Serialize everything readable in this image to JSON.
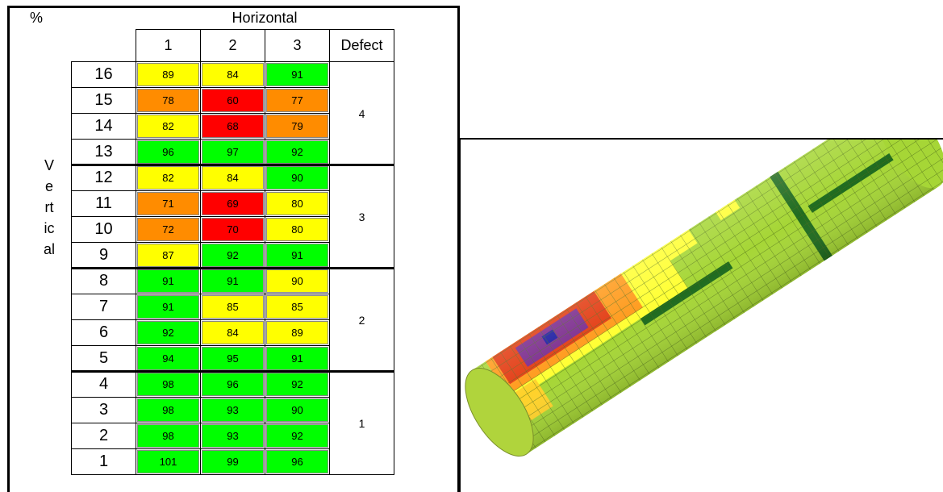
{
  "table": {
    "corner": "%",
    "header": "Horizontal",
    "vertical_label": "Vertical",
    "columns": [
      "1",
      "2",
      "3",
      "Defect"
    ],
    "colors": {
      "g": "#00ff00",
      "y": "#ffff00",
      "o": "#ff8c00",
      "r": "#ff0000"
    },
    "rows": [
      {
        "label": "16",
        "cells": [
          {
            "value": 89,
            "color": "y"
          },
          {
            "value": 84,
            "color": "y"
          },
          {
            "value": 91,
            "color": "g"
          }
        ]
      },
      {
        "label": "15",
        "cells": [
          {
            "value": 78,
            "color": "o"
          },
          {
            "value": 60,
            "color": "r"
          },
          {
            "value": 77,
            "color": "o"
          }
        ]
      },
      {
        "label": "14",
        "cells": [
          {
            "value": 82,
            "color": "y"
          },
          {
            "value": 68,
            "color": "r"
          },
          {
            "value": 79,
            "color": "o"
          }
        ]
      },
      {
        "label": "13",
        "cells": [
          {
            "value": 96,
            "color": "g"
          },
          {
            "value": 97,
            "color": "g"
          },
          {
            "value": 92,
            "color": "g"
          }
        ]
      },
      {
        "label": "12",
        "cells": [
          {
            "value": 82,
            "color": "y"
          },
          {
            "value": 84,
            "color": "y"
          },
          {
            "value": 90,
            "color": "g"
          }
        ]
      },
      {
        "label": "11",
        "cells": [
          {
            "value": 71,
            "color": "o"
          },
          {
            "value": 69,
            "color": "r"
          },
          {
            "value": 80,
            "color": "y"
          }
        ]
      },
      {
        "label": "10",
        "cells": [
          {
            "value": 72,
            "color": "o"
          },
          {
            "value": 70,
            "color": "r"
          },
          {
            "value": 80,
            "color": "y"
          }
        ]
      },
      {
        "label": "9",
        "cells": [
          {
            "value": 87,
            "color": "y"
          },
          {
            "value": 92,
            "color": "g"
          },
          {
            "value": 91,
            "color": "g"
          }
        ]
      },
      {
        "label": "8",
        "cells": [
          {
            "value": 91,
            "color": "g"
          },
          {
            "value": 91,
            "color": "g"
          },
          {
            "value": 90,
            "color": "y"
          }
        ]
      },
      {
        "label": "7",
        "cells": [
          {
            "value": 91,
            "color": "g"
          },
          {
            "value": 85,
            "color": "y"
          },
          {
            "value": 85,
            "color": "y"
          }
        ]
      },
      {
        "label": "6",
        "cells": [
          {
            "value": 92,
            "color": "g"
          },
          {
            "value": 84,
            "color": "y"
          },
          {
            "value": 89,
            "color": "y"
          }
        ]
      },
      {
        "label": "5",
        "cells": [
          {
            "value": 94,
            "color": "g"
          },
          {
            "value": 95,
            "color": "g"
          },
          {
            "value": 91,
            "color": "g"
          }
        ]
      },
      {
        "label": "4",
        "cells": [
          {
            "value": 98,
            "color": "g"
          },
          {
            "value": 96,
            "color": "g"
          },
          {
            "value": 92,
            "color": "g"
          }
        ]
      },
      {
        "label": "3",
        "cells": [
          {
            "value": 98,
            "color": "g"
          },
          {
            "value": 93,
            "color": "g"
          },
          {
            "value": 90,
            "color": "g"
          }
        ]
      },
      {
        "label": "2",
        "cells": [
          {
            "value": 98,
            "color": "g"
          },
          {
            "value": 93,
            "color": "g"
          },
          {
            "value": 92,
            "color": "g"
          }
        ]
      },
      {
        "label": "1",
        "cells": [
          {
            "value": 101,
            "color": "g"
          },
          {
            "value": 99,
            "color": "g"
          },
          {
            "value": 96,
            "color": "g"
          }
        ]
      }
    ],
    "defects": [
      "4",
      "3",
      "2",
      "1"
    ]
  }
}
